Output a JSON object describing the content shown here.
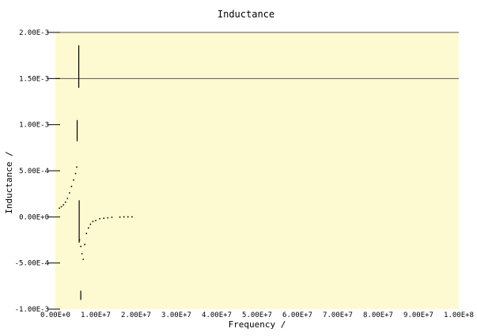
{
  "chart_data": {
    "type": "scatter",
    "title": "Inductance",
    "xlabel": "Frequency /",
    "ylabel": "Inductance /",
    "xlim": [
      0,
      100000000
    ],
    "ylim": [
      -0.001,
      0.002
    ],
    "x_ticks": [
      0,
      10000000,
      20000000,
      30000000,
      40000000,
      50000000,
      60000000,
      70000000,
      80000000,
      90000000,
      100000000
    ],
    "x_tick_labels": [
      "0.00E+0",
      "1.00E+7",
      "2.00E+7",
      "3.00E+7",
      "4.00E+7",
      "5.00E+7",
      "6.00E+7",
      "7.00E+7",
      "8.00E+7",
      "9.00E+7",
      "1.00E+8"
    ],
    "y_ticks": [
      -0.001,
      -0.0005,
      0,
      0.0005,
      0.001,
      0.0015,
      0.002
    ],
    "y_tick_labels": [
      "-1.00E-3",
      "-5.00E-4",
      "0.00E+0",
      "5.00E-4",
      "1.00E-3",
      "1.50E-3",
      "2.00E-3"
    ],
    "grid": "horizontal lines at 1.50E-3 and 2.00E-3",
    "colors": {
      "plot_background": "#fdfad2",
      "series": "#000000",
      "grid": "#555555"
    },
    "series": [
      {
        "points": [
          [
            1000000,
            9.5e-05
          ],
          [
            1500000,
            0.00011
          ],
          [
            2000000,
            0.00013
          ],
          [
            2500000,
            0.00016
          ],
          [
            3000000,
            0.0002
          ],
          [
            3500000,
            0.00026
          ],
          [
            4000000,
            0.00033
          ],
          [
            4500000,
            0.0004
          ],
          [
            5000000,
            0.00047
          ],
          [
            5300000,
            0.00054
          ],
          [
            6000000,
            -0.00025
          ],
          [
            6300000,
            -0.00032
          ],
          [
            6600000,
            -0.0004
          ],
          [
            6900000,
            -0.00046
          ],
          [
            7300000,
            -0.0003
          ],
          [
            7700000,
            -0.00018
          ],
          [
            8200000,
            -0.00012
          ],
          [
            8700000,
            -8e-05
          ],
          [
            9300000,
            -5e-05
          ],
          [
            10000000,
            -4e-05
          ],
          [
            11000000,
            -2e-05
          ],
          [
            12000000,
            -1.5e-05
          ],
          [
            13000000,
            -1e-05
          ],
          [
            14000000,
            -5e-06
          ],
          [
            16000000,
            -2e-06
          ],
          [
            17000000,
            0
          ],
          [
            18000000,
            0
          ],
          [
            19000000,
            0
          ]
        ],
        "segments": [
          [
            [
              5800000,
              0.00186
            ],
            [
              5800000,
              0.0014
            ]
          ],
          [
            [
              5400000,
              0.00105
            ],
            [
              5400000,
              0.00082
            ]
          ],
          [
            [
              5900000,
              0.00018
            ],
            [
              5900000,
              -0.00028
            ]
          ],
          [
            [
              6300000,
              -0.0008
            ],
            [
              6300000,
              -0.0009
            ]
          ]
        ]
      }
    ]
  }
}
